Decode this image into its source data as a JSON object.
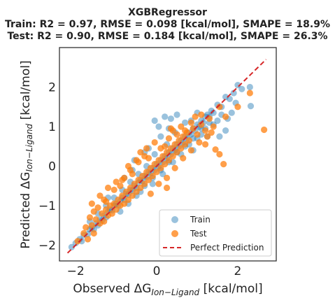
{
  "chart_data": {
    "type": "scatter",
    "title_lines": [
      "XGBRegressor",
      "Train: R2 = 0.97, RMSE = 0.098 [kcal/mol], SMAPE = 18.9%",
      "Test: R2 = 0.90, RMSE = 0.184 [kcal/mol], SMAPE = 26.3%"
    ],
    "xlabel": {
      "prefix": "Observed ",
      "delta": "ΔG",
      "sub": "Ion−Ligand",
      "suffix": " [kcal/mol]"
    },
    "ylabel": {
      "prefix": "Predicted ",
      "delta": "ΔG",
      "sub": "Ion−Ligand",
      "suffix": " [kcal/mol]"
    },
    "xlim": [
      -2.4,
      2.95
    ],
    "ylim": [
      -2.4,
      3.0
    ],
    "xticks": [
      -2,
      0,
      2
    ],
    "yticks": [
      -2,
      -1,
      0,
      1,
      2
    ],
    "tick_labels": {
      "x": [
        "−2",
        "0",
        "2"
      ],
      "y": [
        "−2",
        "−1",
        "0",
        "1",
        "2"
      ]
    },
    "grid": false,
    "legend_position": "lower-right",
    "series": [
      {
        "name": "Train",
        "kind": "points",
        "color": "#1f77b4",
        "alpha": 0.45,
        "points": [
          [
            -2.1,
            -2.05
          ],
          [
            -2.0,
            -1.95
          ],
          [
            -1.9,
            -1.85
          ],
          [
            -1.85,
            -1.9
          ],
          [
            -1.8,
            -1.75
          ],
          [
            -1.7,
            -1.72
          ],
          [
            -1.65,
            -1.6
          ],
          [
            -1.6,
            -1.55
          ],
          [
            -1.55,
            -1.6
          ],
          [
            -1.5,
            -1.45
          ],
          [
            -1.45,
            -1.5
          ],
          [
            -1.4,
            -1.35
          ],
          [
            -1.35,
            -1.38
          ],
          [
            -1.3,
            -1.25
          ],
          [
            -1.25,
            -1.3
          ],
          [
            -1.2,
            -1.15
          ],
          [
            -1.15,
            -1.1
          ],
          [
            -1.1,
            -1.12
          ],
          [
            -1.05,
            -1.0
          ],
          [
            -1.0,
            -0.95
          ],
          [
            -0.95,
            -1.0
          ],
          [
            -0.9,
            -0.88
          ],
          [
            -0.85,
            -0.8
          ],
          [
            -0.8,
            -0.85
          ],
          [
            -0.75,
            -0.7
          ],
          [
            -0.7,
            -0.72
          ],
          [
            -0.65,
            -0.6
          ],
          [
            -0.6,
            -0.62
          ],
          [
            -0.55,
            -0.5
          ],
          [
            -0.5,
            -0.55
          ],
          [
            -0.45,
            -0.42
          ],
          [
            -0.4,
            -0.35
          ],
          [
            -0.35,
            -0.38
          ],
          [
            -0.3,
            -0.25
          ],
          [
            -0.25,
            -0.28
          ],
          [
            -0.2,
            -0.15
          ],
          [
            -0.15,
            -0.18
          ],
          [
            -0.1,
            -0.05
          ],
          [
            -0.05,
            -0.1
          ],
          [
            0.0,
            0.05
          ],
          [
            0.05,
            0.0
          ],
          [
            0.1,
            0.15
          ],
          [
            0.15,
            0.1
          ],
          [
            0.2,
            0.25
          ],
          [
            0.25,
            0.2
          ],
          [
            0.3,
            0.35
          ],
          [
            0.35,
            0.3
          ],
          [
            0.4,
            0.45
          ],
          [
            0.45,
            0.4
          ],
          [
            0.5,
            0.55
          ],
          [
            0.55,
            0.5
          ],
          [
            0.6,
            0.65
          ],
          [
            0.65,
            0.6
          ],
          [
            0.7,
            0.75
          ],
          [
            0.75,
            0.7
          ],
          [
            0.8,
            0.85
          ],
          [
            0.85,
            0.8
          ],
          [
            0.9,
            0.95
          ],
          [
            0.95,
            0.9
          ],
          [
            1.0,
            1.05
          ],
          [
            1.05,
            1.0
          ],
          [
            1.1,
            1.15
          ],
          [
            1.15,
            1.1
          ],
          [
            1.2,
            1.25
          ],
          [
            1.25,
            1.3
          ],
          [
            1.3,
            1.25
          ],
          [
            1.35,
            1.4
          ],
          [
            1.4,
            1.35
          ],
          [
            1.5,
            1.55
          ],
          [
            1.6,
            1.5
          ],
          [
            1.7,
            1.75
          ],
          [
            1.8,
            1.7
          ],
          [
            1.9,
            1.85
          ],
          [
            2.0,
            2.05
          ],
          [
            2.1,
            1.95
          ],
          [
            2.3,
            2.0
          ],
          [
            2.32,
            1.52
          ],
          [
            1.55,
            0.75
          ],
          [
            1.7,
            0.9
          ],
          [
            1.25,
            0.75
          ],
          [
            0.9,
            0.4
          ],
          [
            1.1,
            0.8
          ],
          [
            -0.3,
            0.35
          ],
          [
            -0.55,
            0.15
          ],
          [
            -0.2,
            0.45
          ],
          [
            0.1,
            0.75
          ],
          [
            0.3,
            0.95
          ],
          [
            0.35,
            1.2
          ],
          [
            0.05,
            1.0
          ],
          [
            0.5,
            1.3
          ],
          [
            0.7,
            1.1
          ],
          [
            -0.8,
            -0.3
          ],
          [
            -0.6,
            -0.1
          ],
          [
            -1.2,
            -0.8
          ],
          [
            -0.4,
            -0.65
          ],
          [
            -0.1,
            -0.45
          ],
          [
            0.15,
            -0.2
          ],
          [
            0.4,
            0.1
          ],
          [
            0.6,
            0.3
          ],
          [
            0.8,
            0.55
          ],
          [
            1.0,
            0.7
          ],
          [
            1.2,
            0.95
          ],
          [
            1.4,
            1.05
          ],
          [
            1.5,
            1.15
          ],
          [
            0.45,
            0.85
          ],
          [
            0.25,
            0.55
          ],
          [
            -0.05,
            0.3
          ],
          [
            -0.25,
            0.0
          ],
          [
            -0.45,
            -0.2
          ],
          [
            -0.65,
            -0.4
          ],
          [
            -0.85,
            -0.6
          ],
          [
            -1.05,
            -0.8
          ],
          [
            -1.25,
            -1.0
          ],
          [
            -1.45,
            -1.2
          ],
          [
            -1.65,
            -1.4
          ],
          [
            -0.9,
            -1.15
          ],
          [
            -0.7,
            -0.95
          ],
          [
            -0.5,
            -0.75
          ],
          [
            -0.3,
            -0.5
          ],
          [
            -0.1,
            -0.3
          ],
          [
            0.1,
            -0.1
          ],
          [
            0.3,
            0.1
          ],
          [
            0.5,
            0.35
          ],
          [
            0.7,
            0.5
          ],
          [
            0.9,
            0.7
          ],
          [
            1.1,
            0.95
          ],
          [
            1.3,
            1.1
          ],
          [
            1.6,
            1.3
          ],
          [
            1.75,
            1.2
          ],
          [
            1.85,
            1.35
          ],
          [
            1.95,
            1.6
          ],
          [
            -0.05,
            1.15
          ],
          [
            0.2,
            1.25
          ],
          [
            1.0,
            1.35
          ],
          [
            0.85,
            1.15
          ]
        ]
      },
      {
        "name": "Test",
        "kind": "points",
        "color": "#ff7f0e",
        "alpha": 0.75,
        "points": [
          [
            -1.95,
            -1.9
          ],
          [
            -1.8,
            -1.7
          ],
          [
            -1.7,
            -1.85
          ],
          [
            -1.6,
            -1.5
          ],
          [
            -1.55,
            -1.7
          ],
          [
            -1.5,
            -1.35
          ],
          [
            -1.4,
            -1.45
          ],
          [
            -1.35,
            -1.2
          ],
          [
            -1.3,
            -1.4
          ],
          [
            -1.25,
            -1.1
          ],
          [
            -1.2,
            -1.25
          ],
          [
            -1.15,
            -1.0
          ],
          [
            -1.1,
            -1.2
          ],
          [
            -1.05,
            -0.95
          ],
          [
            -1.0,
            -1.1
          ],
          [
            -0.95,
            -0.85
          ],
          [
            -0.9,
            -1.0
          ],
          [
            -0.85,
            -0.75
          ],
          [
            -0.8,
            -0.95
          ],
          [
            -0.75,
            -0.65
          ],
          [
            -0.7,
            -0.85
          ],
          [
            -0.65,
            -0.55
          ],
          [
            -0.6,
            -0.75
          ],
          [
            -0.55,
            -0.45
          ],
          [
            -0.5,
            -0.65
          ],
          [
            -0.45,
            -0.35
          ],
          [
            -0.4,
            -0.55
          ],
          [
            -0.35,
            -0.25
          ],
          [
            -0.3,
            -0.45
          ],
          [
            -0.25,
            -0.15
          ],
          [
            -0.2,
            -0.35
          ],
          [
            -0.15,
            -0.05
          ],
          [
            -0.1,
            -0.25
          ],
          [
            -0.05,
            0.05
          ],
          [
            0.0,
            -0.15
          ],
          [
            0.05,
            0.15
          ],
          [
            0.1,
            -0.05
          ],
          [
            0.15,
            0.25
          ],
          [
            0.2,
            0.05
          ],
          [
            0.25,
            0.35
          ],
          [
            0.3,
            0.15
          ],
          [
            0.35,
            0.45
          ],
          [
            0.4,
            0.25
          ],
          [
            0.45,
            0.55
          ],
          [
            0.5,
            0.35
          ],
          [
            0.55,
            0.65
          ],
          [
            0.6,
            0.45
          ],
          [
            0.65,
            0.75
          ],
          [
            0.7,
            0.55
          ],
          [
            0.75,
            0.85
          ],
          [
            0.8,
            0.65
          ],
          [
            0.9,
            0.95
          ],
          [
            1.0,
            0.8
          ],
          [
            1.1,
            1.05
          ],
          [
            1.2,
            0.9
          ],
          [
            1.3,
            1.2
          ],
          [
            1.4,
            1.0
          ],
          [
            1.55,
            1.5
          ],
          [
            1.7,
            1.25
          ],
          [
            2.0,
            1.5
          ],
          [
            2.3,
            1.85
          ],
          [
            2.65,
            0.92
          ],
          [
            1.2,
            0.55
          ],
          [
            1.45,
            0.42
          ],
          [
            1.55,
            0.3
          ],
          [
            1.65,
            0.05
          ],
          [
            0.25,
            -0.55
          ],
          [
            -1.2,
            -0.55
          ],
          [
            -1.0,
            -0.4
          ],
          [
            -0.8,
            -0.3
          ],
          [
            -0.5,
            0.15
          ],
          [
            -0.3,
            0.25
          ],
          [
            -0.7,
            0.0
          ],
          [
            -0.4,
            0.35
          ],
          [
            0.1,
            0.45
          ],
          [
            0.3,
            0.7
          ],
          [
            -0.9,
            -0.5
          ],
          [
            -1.3,
            -0.85
          ],
          [
            -1.55,
            -1.15
          ],
          [
            -0.6,
            -0.2
          ],
          [
            -0.2,
            0.2
          ],
          [
            0.2,
            0.5
          ],
          [
            0.5,
            0.8
          ],
          [
            0.7,
            0.9
          ],
          [
            0.85,
            1.1
          ],
          [
            0.95,
            1.25
          ],
          [
            1.1,
            1.3
          ],
          [
            0.6,
            1.0
          ],
          [
            0.4,
            0.9
          ],
          [
            -0.05,
            0.6
          ],
          [
            -0.25,
            0.45
          ],
          [
            -0.45,
            0.1
          ],
          [
            -0.65,
            -0.1
          ],
          [
            -0.85,
            -0.35
          ],
          [
            -1.05,
            -0.6
          ],
          [
            -1.25,
            -0.9
          ],
          [
            -1.45,
            -1.05
          ],
          [
            -1.65,
            -1.3
          ],
          [
            -1.75,
            -1.55
          ],
          [
            -0.15,
            -0.7
          ],
          [
            0.05,
            -0.45
          ],
          [
            0.25,
            -0.3
          ],
          [
            0.45,
            -0.05
          ],
          [
            0.65,
            0.2
          ],
          [
            0.85,
            0.4
          ],
          [
            1.05,
            0.6
          ],
          [
            1.25,
            0.75
          ],
          [
            -1.6,
            -0.95
          ],
          [
            -1.4,
            -0.75
          ],
          [
            0.35,
            0.95
          ],
          [
            1.35,
            0.85
          ]
        ]
      },
      {
        "name": "Perfect Prediction",
        "kind": "line",
        "color": "#d62728",
        "dash": "dashed",
        "x": [
          -2.2,
          2.7
        ],
        "y": [
          -2.2,
          2.7
        ]
      }
    ]
  }
}
